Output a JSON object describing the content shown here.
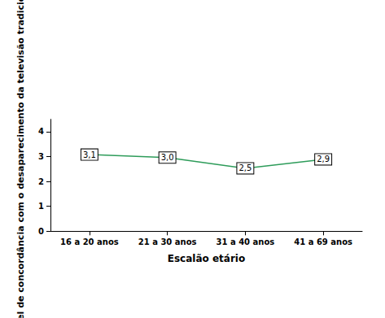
{
  "chart_data": {
    "type": "line",
    "x_label": "Escalão etário",
    "y_label": "Média Nível de concordância com o desaparecimento da televisão tradicional",
    "categories": [
      "16 a 20 anos",
      "21 a 30 anos",
      "31 a 40 anos",
      "41 a 69 anos"
    ],
    "values": [
      3.08,
      2.96,
      2.53,
      2.89
    ],
    "value_labels": [
      "3,1",
      "3,0",
      "2,5",
      "2,9"
    ],
    "data_labels": true,
    "color": "#2e9c5a",
    "ylim": [
      0,
      4.5
    ],
    "yticks": [
      0,
      1,
      2,
      3,
      4
    ],
    "grid": false
  }
}
